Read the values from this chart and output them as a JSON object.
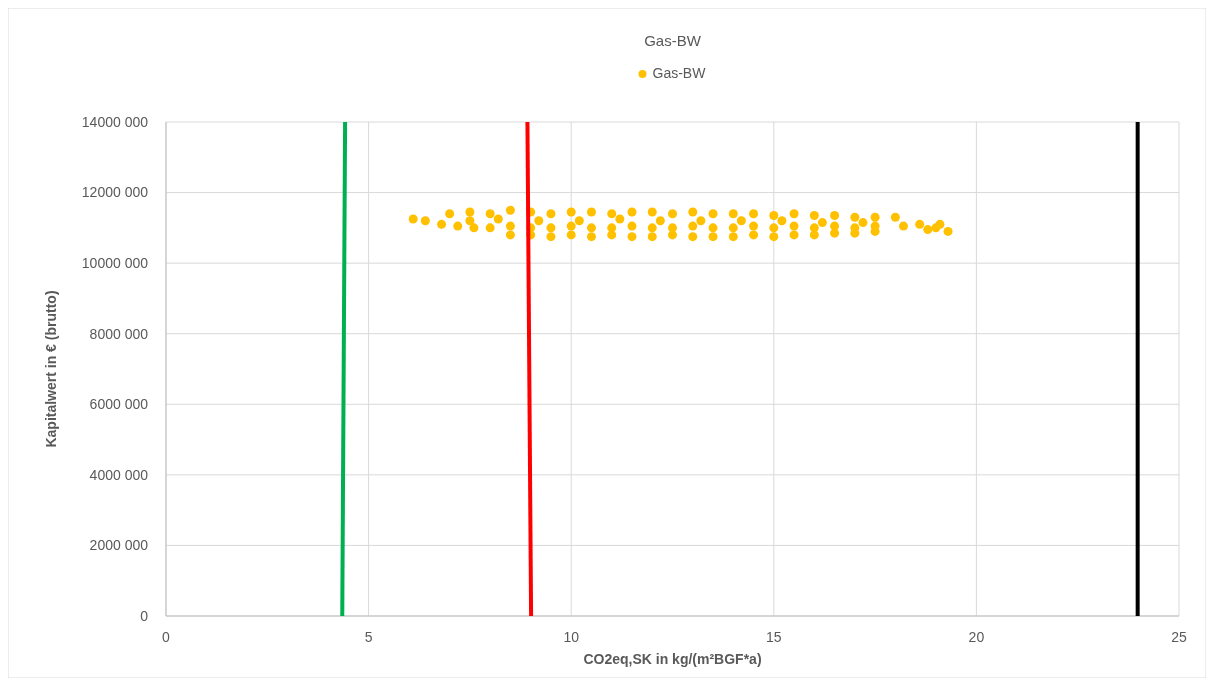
{
  "chart_data": {
    "type": "scatter",
    "title": "Gas-BW",
    "xlabel": "CO2eq,SK in kg/(m²BGF*a)",
    "ylabel": "Kapitalwert in € (brutto)",
    "xlim": [
      0,
      25
    ],
    "xticks": [
      0,
      5,
      10,
      15,
      20,
      25
    ],
    "ylim": [
      0,
      14000000
    ],
    "yticks": [
      {
        "value": 0,
        "label": "0"
      },
      {
        "value": 2000000,
        "label": "2000 000"
      },
      {
        "value": 4000000,
        "label": "4000 000"
      },
      {
        "value": 6000000,
        "label": "6000 000"
      },
      {
        "value": 8000000,
        "label": "8000 000"
      },
      {
        "value": 10000000,
        "label": "10000 000"
      },
      {
        "value": 12000000,
        "label": "12000 000"
      },
      {
        "value": 14000000,
        "label": "14000 000"
      }
    ],
    "grid": true,
    "legend": "top",
    "marker": "circle",
    "series": [
      {
        "name": "Gas-BW",
        "color": "#ffc000",
        "x": [
          6.1,
          6.4,
          6.8,
          7.2,
          7.6,
          7.0,
          7.5,
          8.0,
          8.5,
          9.0,
          9.5,
          10.0,
          10.5,
          11.0,
          11.5,
          12.0,
          12.5,
          13.0,
          13.5,
          14.0,
          14.5,
          15.0,
          15.5,
          16.0,
          16.5,
          17.0,
          17.5,
          18.0,
          8.5,
          9.0,
          9.5,
          10.0,
          10.5,
          11.0,
          11.5,
          12.0,
          12.5,
          13.0,
          13.5,
          14.0,
          14.5,
          15.0,
          15.5,
          16.0,
          16.5,
          17.0,
          17.5,
          8.0,
          8.5,
          9.0,
          9.5,
          10.0,
          10.5,
          11.0,
          11.5,
          12.0,
          12.5,
          13.0,
          13.5,
          14.0,
          14.5,
          15.0,
          15.5,
          16.0,
          16.5,
          17.0,
          17.5,
          7.5,
          8.2,
          9.2,
          10.2,
          11.2,
          12.2,
          13.2,
          14.2,
          15.2,
          16.2,
          17.2,
          18.2,
          18.6,
          19.0,
          19.3,
          18.8,
          19.1
        ],
        "values": [
          11250000,
          11200000,
          11100000,
          11050000,
          11000000,
          11400000,
          11450000,
          11400000,
          11500000,
          11450000,
          11400000,
          11450000,
          11450000,
          11400000,
          11450000,
          11450000,
          11400000,
          11450000,
          11400000,
          11400000,
          11400000,
          11350000,
          11400000,
          11350000,
          11350000,
          11300000,
          11300000,
          11300000,
          10800000,
          10800000,
          10750000,
          10800000,
          10750000,
          10800000,
          10750000,
          10750000,
          10800000,
          10750000,
          10750000,
          10750000,
          10800000,
          10750000,
          10800000,
          10800000,
          10850000,
          10850000,
          10900000,
          11000000,
          11050000,
          11000000,
          11000000,
          11050000,
          11000000,
          11000000,
          11050000,
          11000000,
          11000000,
          11050000,
          11000000,
          11000000,
          11050000,
          11000000,
          11050000,
          11000000,
          11050000,
          11000000,
          11050000,
          11200000,
          11250000,
          11200000,
          11200000,
          11250000,
          11200000,
          11200000,
          11200000,
          11200000,
          11150000,
          11150000,
          11050000,
          11100000,
          11000000,
          10900000,
          10950000,
          11100000
        ]
      },
      {
        "type": "line",
        "marker": "none",
        "color": "#00b050",
        "x": [
          4.42,
          4.35
        ],
        "values": [
          14000000,
          0
        ]
      },
      {
        "type": "line",
        "marker": "none",
        "color": "#ff0000",
        "x": [
          8.92,
          9.01
        ],
        "values": [
          14000000,
          0
        ]
      },
      {
        "type": "line",
        "marker": "none",
        "color": "#000000",
        "x": [
          23.98,
          23.98
        ],
        "values": [
          14000000,
          0
        ]
      }
    ]
  }
}
